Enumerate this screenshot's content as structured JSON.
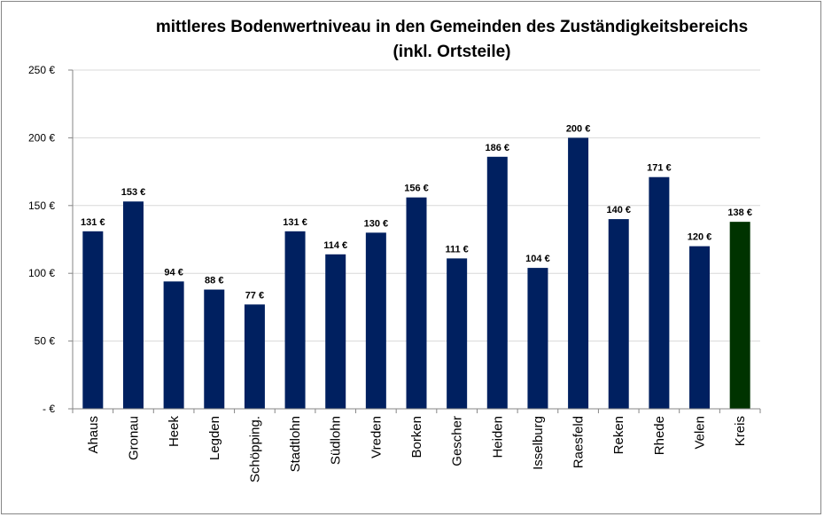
{
  "chart_data": {
    "type": "bar",
    "title": "mittleres Bodenwertniveau in den Gemeinden des Zuständigkeitsbereichs",
    "subtitle": "(inkl. Ortsteile)",
    "xlabel": "",
    "ylabel": "",
    "ylim": [
      0,
      250
    ],
    "yticks": [
      0,
      50,
      100,
      150,
      200,
      250
    ],
    "ytick_labels": [
      "-  €",
      "50 €",
      "100 €",
      "150 €",
      "200 €",
      "250 €"
    ],
    "grid": true,
    "categories": [
      "Ahaus",
      "Gronau",
      "Heek",
      "Legden",
      "Schöpping.",
      "Stadtlohn",
      "Südlohn",
      "Vreden",
      "Borken",
      "Gescher",
      "Heiden",
      "Isselburg",
      "Raesfeld",
      "Reken",
      "Rhede",
      "Velen",
      "Kreis"
    ],
    "values": [
      131,
      153,
      94,
      88,
      77,
      131,
      114,
      130,
      156,
      111,
      186,
      104,
      200,
      140,
      171,
      120,
      138
    ],
    "data_labels": [
      "131 €",
      "153 €",
      "94 €",
      "88 €",
      "77 €",
      "131 €",
      "114 €",
      "130 €",
      "156 €",
      "111 €",
      "186 €",
      "104 €",
      "200 €",
      "140 €",
      "171 €",
      "120 €",
      "138 €"
    ],
    "colors": [
      "#002060",
      "#002060",
      "#002060",
      "#002060",
      "#002060",
      "#002060",
      "#002060",
      "#002060",
      "#002060",
      "#002060",
      "#002060",
      "#002060",
      "#002060",
      "#002060",
      "#002060",
      "#002060",
      "#003300"
    ]
  }
}
